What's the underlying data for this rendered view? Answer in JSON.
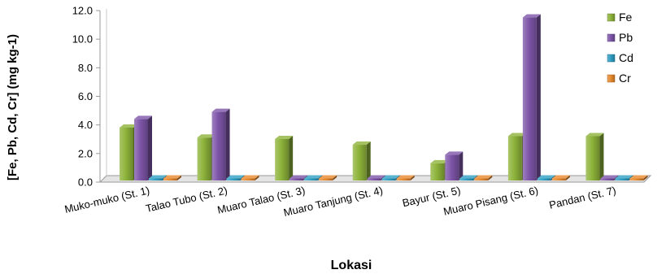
{
  "chart_data": {
    "type": "bar",
    "title": "",
    "xlabel": "Lokasi",
    "ylabel": "[Fe, Pb, Cd, Cr] (mg kg-1)",
    "ylim": [
      0,
      12
    ],
    "yticks": [
      "0.0",
      "2.0",
      "4.0",
      "6.0",
      "8.0",
      "10.0",
      "12.0"
    ],
    "categories": [
      "Muko-muko (St. 1)",
      "Talao Tubo (St. 2)",
      "Muaro Talao (St. 3)",
      "Muaro Tanjung (St. 4)",
      "Bayur (St. 5)",
      "Muaro Pisang (St. 6)",
      "Pandan (St. 7)"
    ],
    "series": [
      {
        "name": "Fe",
        "color": "#8DB33A",
        "values": [
          3.7,
          3.0,
          2.9,
          2.5,
          1.2,
          3.1,
          3.1
        ]
      },
      {
        "name": "Pb",
        "color": "#7D55A8",
        "values": [
          4.3,
          4.8,
          0.0,
          0.0,
          1.8,
          11.4,
          0.0
        ]
      },
      {
        "name": "Cd",
        "color": "#2F9FC3",
        "values": [
          0.0,
          0.0,
          0.0,
          0.0,
          0.0,
          0.0,
          0.0
        ]
      },
      {
        "name": "Cr",
        "color": "#E88A2E",
        "values": [
          0.0,
          0.0,
          0.0,
          0.0,
          0.0,
          0.0,
          0.0
        ]
      }
    ],
    "legend_position": "right",
    "grid": false
  }
}
